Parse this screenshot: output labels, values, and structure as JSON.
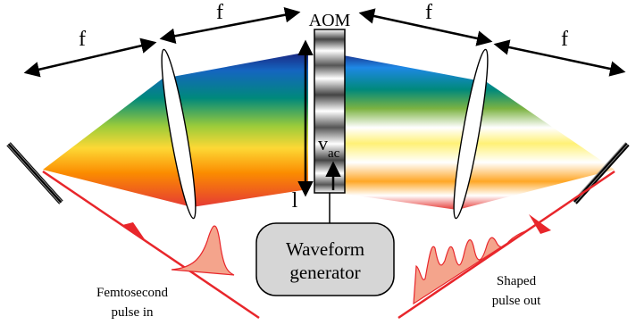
{
  "labels": {
    "f_left_outer": "f",
    "f_left_inner": "f",
    "f_right_inner": "f",
    "f_right_outer": "f",
    "aom": "AOM",
    "vac_main": "v",
    "vac_sub": "ac",
    "length": "l",
    "waveform_line1": "Waveform",
    "waveform_line2": "generator",
    "input_line1": "Femtosecond",
    "input_line2": "pulse in",
    "output_line1": "Shaped",
    "output_line2": "pulse out"
  },
  "colors": {
    "laser": "#e8262b",
    "pulse_fill": "#f4a48c",
    "box_fill": "#d6d6d6",
    "arrow": "#000000"
  }
}
